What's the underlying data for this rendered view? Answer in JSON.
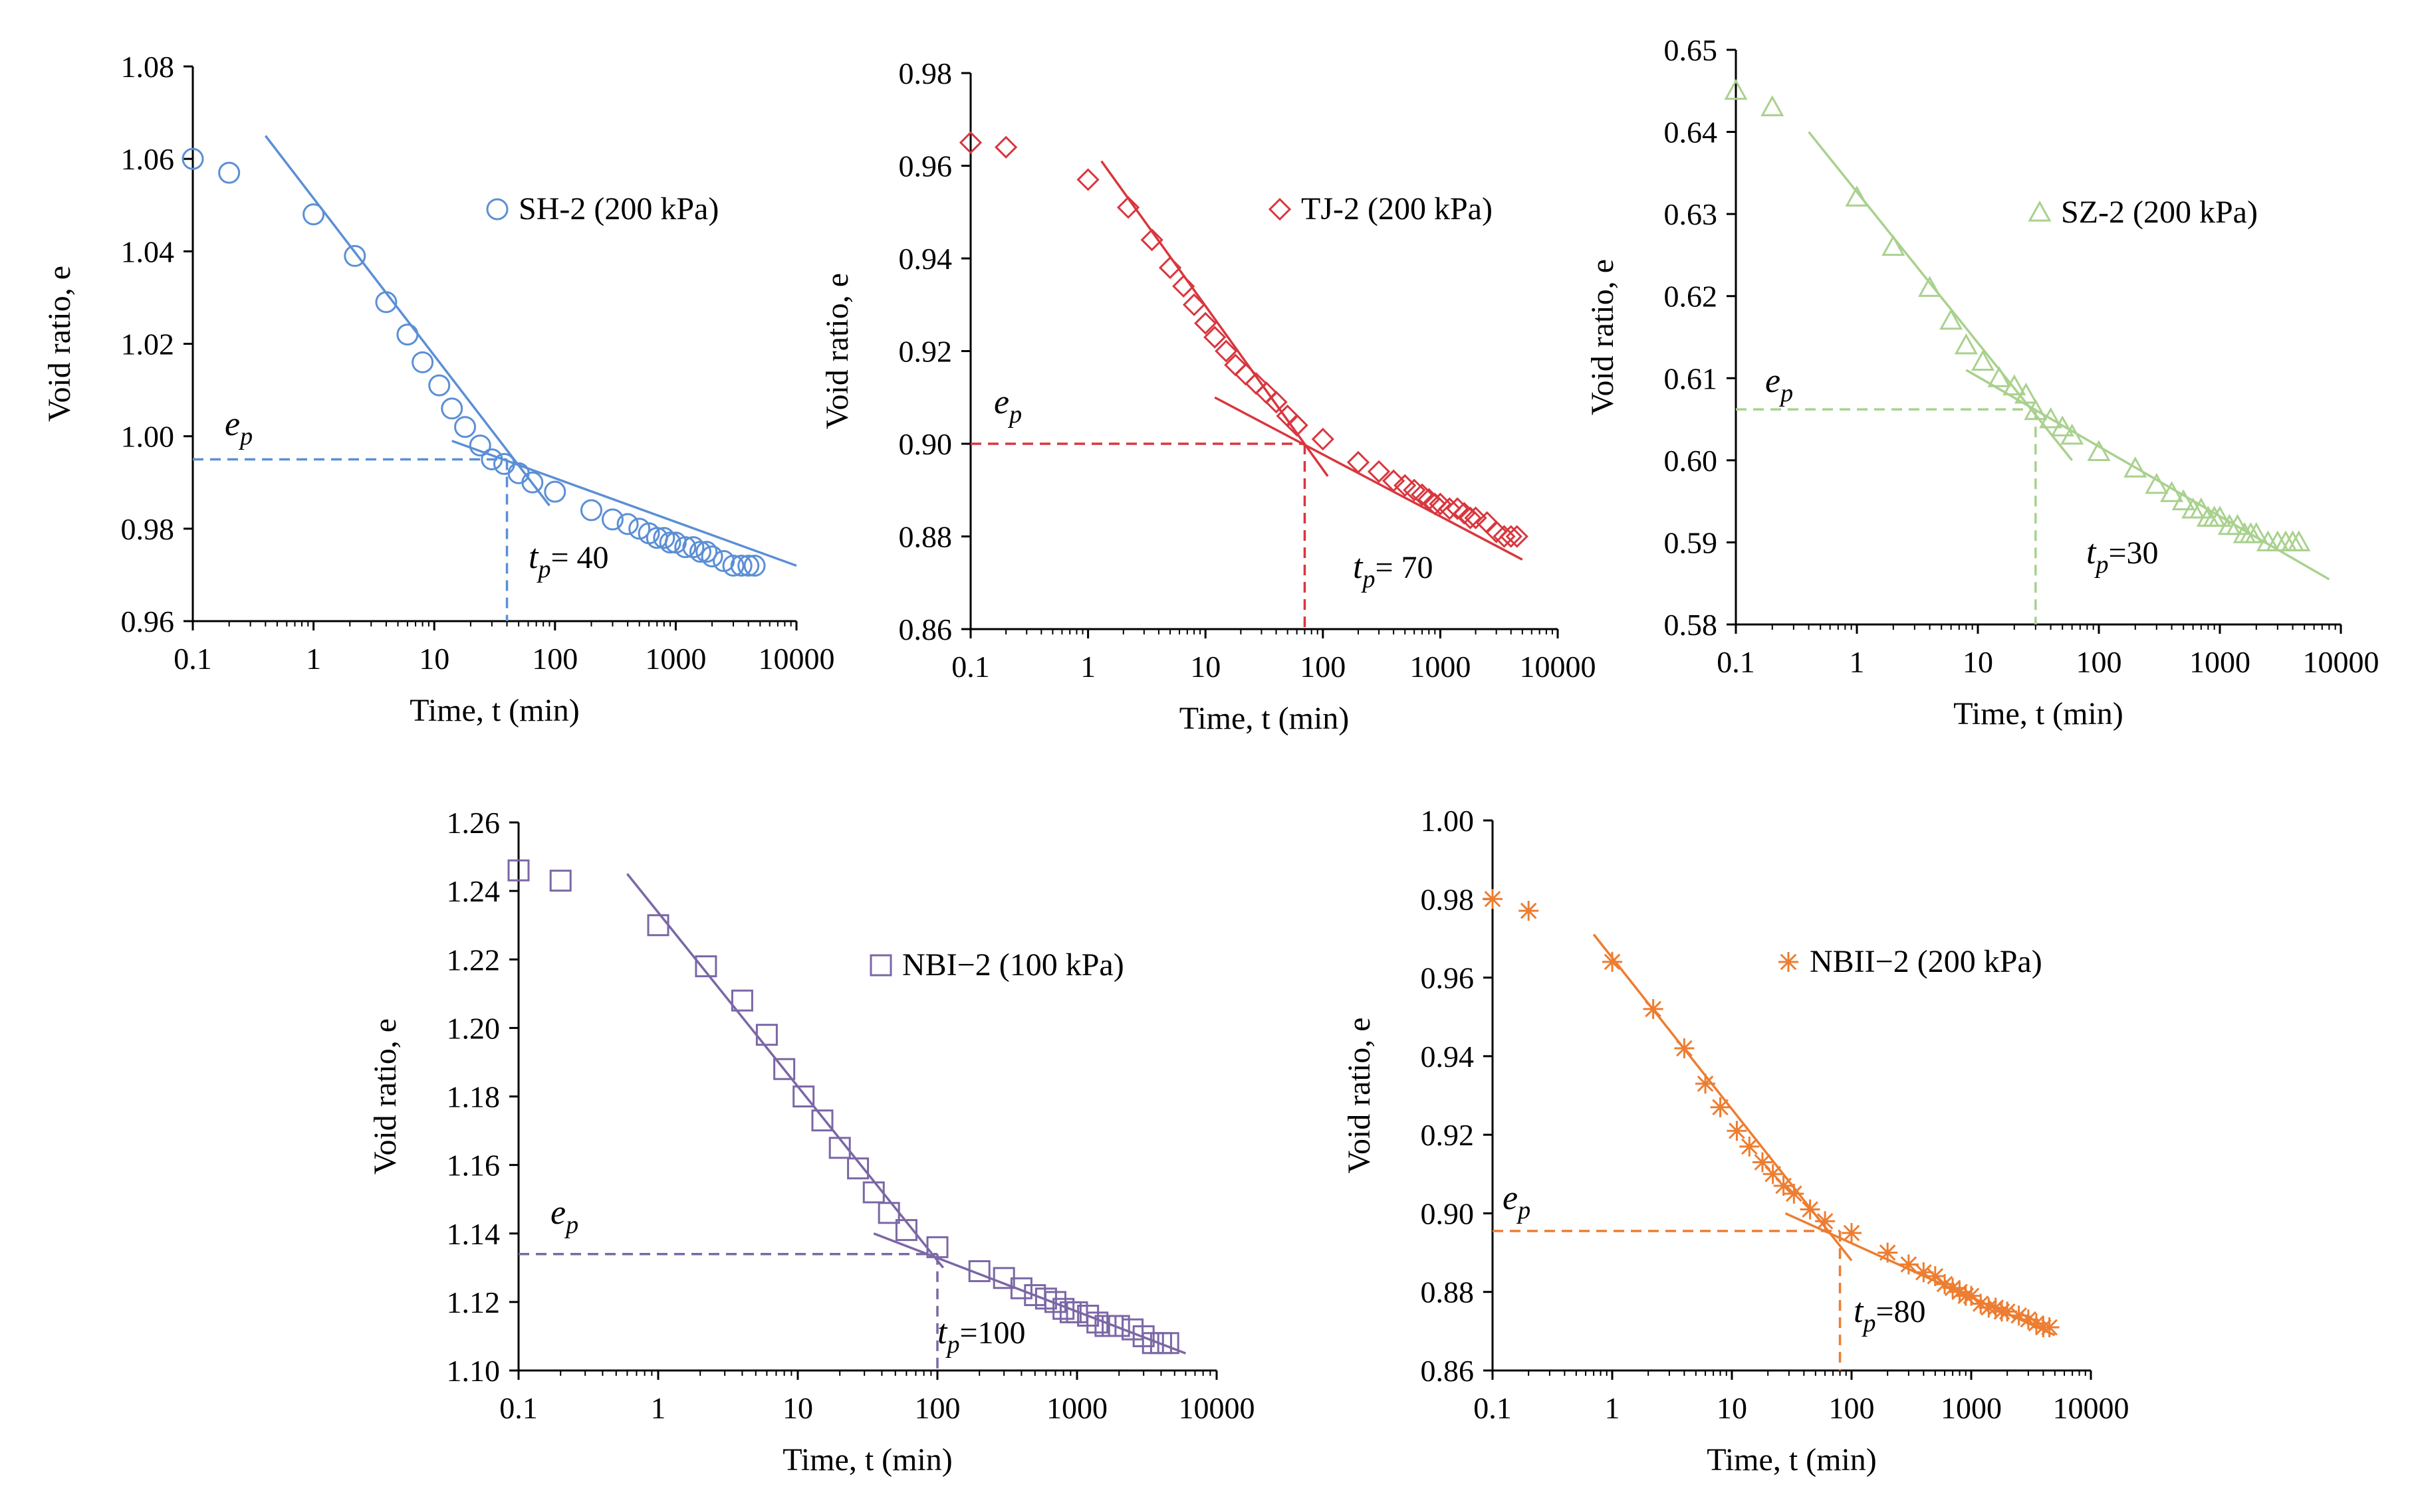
{
  "figure": {
    "charts": [
      {
        "id": "sh2",
        "type": "scatter",
        "color": "#5b8fd6",
        "marker": "circle",
        "legend": "SH-2 (200 kPa)",
        "xlabel": "Time, t (min)",
        "ylabel": "Void ratio, e",
        "xscale": "log",
        "xlim": [
          0.1,
          10000
        ],
        "ylim": [
          0.96,
          1.08
        ],
        "yticks": [
          0.96,
          0.98,
          1.0,
          1.02,
          1.04,
          1.06,
          1.08
        ],
        "ytick_labels": [
          "0.96",
          "0.98",
          "1.00",
          "1.02",
          "1.04",
          "1.06",
          "1.08"
        ],
        "xticks": [
          0.1,
          1,
          10,
          100,
          1000,
          10000
        ],
        "xtick_labels": [
          "0.1",
          "1",
          "10",
          "100",
          "1000",
          "10000"
        ],
        "points": [
          [
            0.1,
            1.06
          ],
          [
            0.2,
            1.057
          ],
          [
            1,
            1.048
          ],
          [
            2.2,
            1.039
          ],
          [
            4,
            1.029
          ],
          [
            6,
            1.022
          ],
          [
            8,
            1.016
          ],
          [
            11,
            1.011
          ],
          [
            14,
            1.006
          ],
          [
            18,
            1.002
          ],
          [
            24,
            0.998
          ],
          [
            30,
            0.995
          ],
          [
            38,
            0.994
          ],
          [
            50,
            0.992
          ],
          [
            65,
            0.99
          ],
          [
            100,
            0.988
          ],
          [
            200,
            0.984
          ],
          [
            300,
            0.982
          ],
          [
            400,
            0.981
          ],
          [
            500,
            0.98
          ],
          [
            600,
            0.979
          ],
          [
            700,
            0.978
          ],
          [
            800,
            0.978
          ],
          [
            900,
            0.977
          ],
          [
            1000,
            0.977
          ],
          [
            1200,
            0.976
          ],
          [
            1400,
            0.976
          ],
          [
            1600,
            0.975
          ],
          [
            1800,
            0.975
          ],
          [
            2000,
            0.974
          ],
          [
            2500,
            0.973
          ],
          [
            3000,
            0.972
          ],
          [
            3500,
            0.972
          ],
          [
            4000,
            0.972
          ],
          [
            4500,
            0.972
          ]
        ],
        "fit_lines": [
          [
            [
              0.4,
              1.065
            ],
            [
              90,
              0.985
            ]
          ],
          [
            [
              14,
              0.999
            ],
            [
              10000,
              0.972
            ]
          ]
        ],
        "tp": 40,
        "ep": 0.995,
        "ep_label": "e",
        "ep_sub": "p",
        "tp_label": "t",
        "tp_sub": "p",
        "tp_text": "= 40"
      },
      {
        "id": "tj2",
        "type": "scatter",
        "color": "#d9363e",
        "marker": "diamond",
        "legend": "TJ-2 (200 kPa)",
        "xlabel": "Time, t (min)",
        "ylabel": "Void ratio, e",
        "xscale": "log",
        "xlim": [
          0.1,
          10000
        ],
        "ylim": [
          0.86,
          0.98
        ],
        "yticks": [
          0.86,
          0.88,
          0.9,
          0.92,
          0.94,
          0.96,
          0.98
        ],
        "ytick_labels": [
          "0.86",
          "0.88",
          "0.90",
          "0.92",
          "0.94",
          "0.96",
          "0.98"
        ],
        "xticks": [
          0.1,
          1,
          10,
          100,
          1000,
          10000
        ],
        "xtick_labels": [
          "0.1",
          "1",
          "10",
          "100",
          "1000",
          "10000"
        ],
        "points": [
          [
            0.1,
            0.965
          ],
          [
            0.2,
            0.964
          ],
          [
            1,
            0.957
          ],
          [
            2.2,
            0.951
          ],
          [
            3.5,
            0.944
          ],
          [
            5,
            0.938
          ],
          [
            6.5,
            0.934
          ],
          [
            8,
            0.93
          ],
          [
            10,
            0.926
          ],
          [
            12,
            0.923
          ],
          [
            15,
            0.92
          ],
          [
            18,
            0.917
          ],
          [
            22,
            0.915
          ],
          [
            27,
            0.913
          ],
          [
            33,
            0.911
          ],
          [
            40,
            0.909
          ],
          [
            50,
            0.906
          ],
          [
            60,
            0.904
          ],
          [
            100,
            0.901
          ],
          [
            200,
            0.896
          ],
          [
            300,
            0.894
          ],
          [
            400,
            0.892
          ],
          [
            500,
            0.891
          ],
          [
            600,
            0.89
          ],
          [
            700,
            0.889
          ],
          [
            800,
            0.888
          ],
          [
            900,
            0.887
          ],
          [
            1000,
            0.887
          ],
          [
            1200,
            0.886
          ],
          [
            1400,
            0.886
          ],
          [
            1600,
            0.885
          ],
          [
            1800,
            0.884
          ],
          [
            2000,
            0.884
          ],
          [
            2500,
            0.883
          ],
          [
            3000,
            0.881
          ],
          [
            3500,
            0.88
          ],
          [
            4000,
            0.88
          ],
          [
            4500,
            0.88
          ]
        ],
        "fit_lines": [
          [
            [
              1.3,
              0.961
            ],
            [
              110,
              0.893
            ]
          ],
          [
            [
              12,
              0.91
            ],
            [
              5000,
              0.875
            ]
          ]
        ],
        "tp": 70,
        "ep": 0.9,
        "ep_label": "e",
        "ep_sub": "p",
        "tp_label": "t",
        "tp_sub": "p",
        "tp_text": "= 70"
      },
      {
        "id": "sz2",
        "type": "scatter",
        "color": "#a9d18e",
        "marker": "triangle",
        "legend": "SZ-2 (200 kPa)",
        "xlabel": "Time, t (min)",
        "ylabel": "Void ratio, e",
        "xscale": "log",
        "xlim": [
          0.1,
          10000
        ],
        "ylim": [
          0.58,
          0.65
        ],
        "yticks": [
          0.58,
          0.59,
          0.6,
          0.61,
          0.62,
          0.63,
          0.64,
          0.65
        ],
        "ytick_labels": [
          "0.58",
          "0.59",
          "0.60",
          "0.61",
          "0.62",
          "0.63",
          "0.64",
          "0.65"
        ],
        "xticks": [
          0.1,
          1,
          10,
          100,
          1000,
          10000
        ],
        "xtick_labels": [
          "0.1",
          "1",
          "10",
          "100",
          "1000",
          "10000"
        ],
        "points": [
          [
            0.1,
            0.645
          ],
          [
            0.2,
            0.643
          ],
          [
            1,
            0.632
          ],
          [
            2,
            0.626
          ],
          [
            4,
            0.621
          ],
          [
            6,
            0.617
          ],
          [
            8,
            0.614
          ],
          [
            11,
            0.612
          ],
          [
            15,
            0.61
          ],
          [
            20,
            0.609
          ],
          [
            25,
            0.608
          ],
          [
            30,
            0.606
          ],
          [
            40,
            0.605
          ],
          [
            50,
            0.604
          ],
          [
            60,
            0.603
          ],
          [
            100,
            0.601
          ],
          [
            200,
            0.599
          ],
          [
            300,
            0.597
          ],
          [
            400,
            0.596
          ],
          [
            500,
            0.595
          ],
          [
            600,
            0.594
          ],
          [
            700,
            0.594
          ],
          [
            800,
            0.593
          ],
          [
            900,
            0.593
          ],
          [
            1000,
            0.593
          ],
          [
            1200,
            0.592
          ],
          [
            1400,
            0.592
          ],
          [
            1600,
            0.591
          ],
          [
            1800,
            0.591
          ],
          [
            2000,
            0.591
          ],
          [
            2500,
            0.59
          ],
          [
            3000,
            0.59
          ],
          [
            3500,
            0.59
          ],
          [
            4000,
            0.59
          ],
          [
            4500,
            0.59
          ]
        ],
        "fit_lines": [
          [
            [
              0.4,
              0.64
            ],
            [
              60,
              0.6
            ]
          ],
          [
            [
              8,
              0.611
            ],
            [
              8000,
              0.5855
            ]
          ]
        ],
        "tp": 30,
        "ep": 0.6062,
        "ep_label": "e",
        "ep_sub": "p",
        "tp_label": "t",
        "tp_sub": "p",
        "tp_text": "=30"
      },
      {
        "id": "nbi2",
        "type": "scatter",
        "color": "#7b67a6",
        "marker": "square",
        "legend": "NBI−2 (100 kPa)",
        "xlabel": "Time, t (min)",
        "ylabel": "Void ratio, e",
        "xscale": "log",
        "xlim": [
          0.1,
          10000
        ],
        "ylim": [
          1.1,
          1.26
        ],
        "yticks": [
          1.1,
          1.12,
          1.14,
          1.16,
          1.18,
          1.2,
          1.22,
          1.24,
          1.26
        ],
        "ytick_labels": [
          "1.10",
          "1.12",
          "1.14",
          "1.16",
          "1.18",
          "1.20",
          "1.22",
          "1.24",
          "1.26"
        ],
        "xticks": [
          0.1,
          1,
          10,
          100,
          1000,
          10000
        ],
        "xtick_labels": [
          "0.1",
          "1",
          "10",
          "100",
          "1000",
          "10000"
        ],
        "points": [
          [
            0.1,
            1.246
          ],
          [
            0.2,
            1.243
          ],
          [
            1,
            1.23
          ],
          [
            2.2,
            1.218
          ],
          [
            4,
            1.208
          ],
          [
            6,
            1.198
          ],
          [
            8,
            1.188
          ],
          [
            11,
            1.18
          ],
          [
            15,
            1.173
          ],
          [
            20,
            1.165
          ],
          [
            27,
            1.159
          ],
          [
            35,
            1.152
          ],
          [
            45,
            1.146
          ],
          [
            60,
            1.141
          ],
          [
            100,
            1.136
          ],
          [
            200,
            1.129
          ],
          [
            300,
            1.127
          ],
          [
            400,
            1.124
          ],
          [
            500,
            1.122
          ],
          [
            600,
            1.121
          ],
          [
            700,
            1.12
          ],
          [
            800,
            1.118
          ],
          [
            900,
            1.117
          ],
          [
            1000,
            1.117
          ],
          [
            1200,
            1.116
          ],
          [
            1400,
            1.114
          ],
          [
            1600,
            1.113
          ],
          [
            1800,
            1.113
          ],
          [
            2000,
            1.113
          ],
          [
            2500,
            1.112
          ],
          [
            3000,
            1.11
          ],
          [
            3500,
            1.108
          ],
          [
            4000,
            1.108
          ],
          [
            4500,
            1.108
          ]
        ],
        "fit_lines": [
          [
            [
              0.6,
              1.245
            ],
            [
              110,
              1.13
            ]
          ],
          [
            [
              35,
              1.14
            ],
            [
              6000,
              1.105
            ]
          ]
        ],
        "tp": 100,
        "ep": 1.134,
        "ep_label": "e",
        "ep_sub": "p",
        "tp_label": "t",
        "tp_sub": "p",
        "tp_text": "=100"
      },
      {
        "id": "nbii2",
        "type": "scatter",
        "color": "#ed7d31",
        "marker": "asterisk",
        "legend": "NBII−2 (200 kPa)",
        "xlabel": "Time, t (min)",
        "ylabel": "Void ratio, e",
        "xscale": "log",
        "xlim": [
          0.1,
          10000
        ],
        "ylim": [
          0.86,
          1.0
        ],
        "yticks": [
          0.86,
          0.88,
          0.9,
          0.92,
          0.94,
          0.96,
          0.98,
          1.0
        ],
        "ytick_labels": [
          "0.86",
          "0.88",
          "0.90",
          "0.92",
          "0.94",
          "0.96",
          "0.98",
          "1.00"
        ],
        "xticks": [
          0.1,
          1,
          10,
          100,
          1000,
          10000
        ],
        "xtick_labels": [
          "0.1",
          "1",
          "10",
          "100",
          "1000",
          "10000"
        ],
        "points": [
          [
            0.1,
            0.98
          ],
          [
            0.2,
            0.977
          ],
          [
            1,
            0.964
          ],
          [
            2.2,
            0.952
          ],
          [
            4,
            0.942
          ],
          [
            6,
            0.933
          ],
          [
            8,
            0.927
          ],
          [
            11,
            0.921
          ],
          [
            14,
            0.917
          ],
          [
            18,
            0.913
          ],
          [
            22,
            0.91
          ],
          [
            27,
            0.907
          ],
          [
            33,
            0.905
          ],
          [
            45,
            0.901
          ],
          [
            60,
            0.898
          ],
          [
            100,
            0.895
          ],
          [
            200,
            0.89
          ],
          [
            300,
            0.887
          ],
          [
            400,
            0.885
          ],
          [
            500,
            0.884
          ],
          [
            600,
            0.882
          ],
          [
            700,
            0.881
          ],
          [
            800,
            0.88
          ],
          [
            900,
            0.879
          ],
          [
            1000,
            0.879
          ],
          [
            1200,
            0.877
          ],
          [
            1400,
            0.876
          ],
          [
            1600,
            0.876
          ],
          [
            1800,
            0.875
          ],
          [
            2000,
            0.875
          ],
          [
            2500,
            0.874
          ],
          [
            3000,
            0.873
          ],
          [
            3500,
            0.872
          ],
          [
            4000,
            0.871
          ],
          [
            4500,
            0.871
          ]
        ],
        "fit_lines": [
          [
            [
              0.7,
              0.971
            ],
            [
              100,
              0.888
            ]
          ],
          [
            [
              28,
              0.9
            ],
            [
              5000,
              0.869
            ]
          ]
        ],
        "tp": 80,
        "ep": 0.8955,
        "ep_label": "e",
        "ep_sub": "p",
        "tp_label": "t",
        "tp_sub": "p",
        "tp_text": "=80"
      }
    ]
  },
  "chart_data": [
    {
      "type": "scatter",
      "series": [
        {
          "name": "SH-2 (200 kPa)"
        }
      ],
      "title": "",
      "xlabel": "Time, t (min)",
      "ylabel": "Void ratio, e",
      "xlim": [
        0.1,
        10000
      ],
      "ylim": [
        0.96,
        1.08
      ],
      "tp": 40,
      "ep": 0.995
    },
    {
      "type": "scatter",
      "series": [
        {
          "name": "TJ-2 (200 kPa)"
        }
      ],
      "title": "",
      "xlabel": "Time, t (min)",
      "ylabel": "Void ratio, e",
      "xlim": [
        0.1,
        10000
      ],
      "ylim": [
        0.86,
        0.98
      ],
      "tp": 70,
      "ep": 0.9
    },
    {
      "type": "scatter",
      "series": [
        {
          "name": "SZ-2 (200 kPa)"
        }
      ],
      "title": "",
      "xlabel": "Time, t (min)",
      "ylabel": "Void ratio, e",
      "xlim": [
        0.1,
        10000
      ],
      "ylim": [
        0.58,
        0.65
      ],
      "tp": 30,
      "ep": 0.606
    },
    {
      "type": "scatter",
      "series": [
        {
          "name": "NBI−2 (100 kPa)"
        }
      ],
      "title": "",
      "xlabel": "Time, t (min)",
      "ylabel": "Void ratio, e",
      "xlim": [
        0.1,
        10000
      ],
      "ylim": [
        1.1,
        1.26
      ],
      "tp": 100,
      "ep": 1.134
    },
    {
      "type": "scatter",
      "series": [
        {
          "name": "NBII−2 (200 kPa)"
        }
      ],
      "title": "",
      "xlabel": "Time, t (min)",
      "ylabel": "Void ratio, e",
      "xlim": [
        0.1,
        10000
      ],
      "ylim": [
        0.86,
        1.0
      ],
      "tp": 80,
      "ep": 0.8955
    }
  ]
}
